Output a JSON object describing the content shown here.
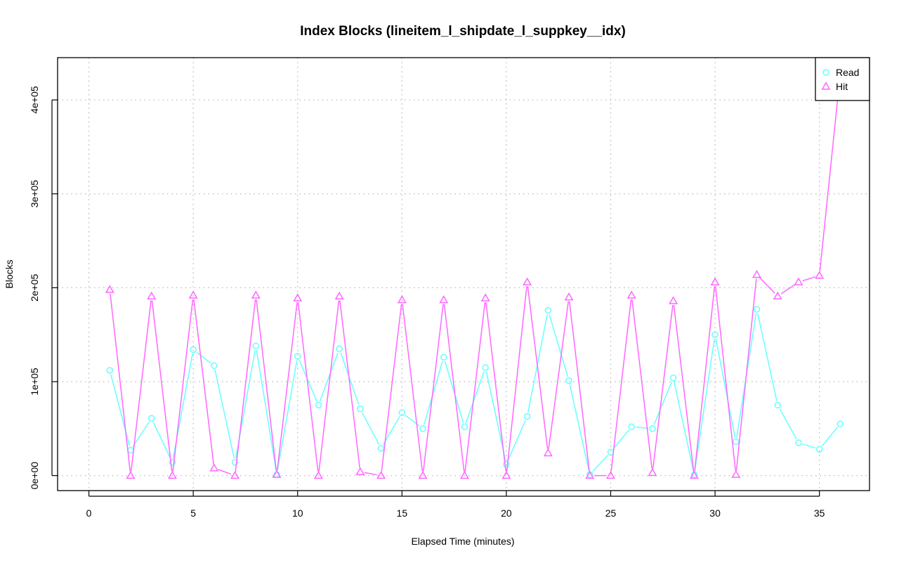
{
  "chart_data": {
    "type": "line",
    "title": "Index Blocks (lineitem_l_shipdate_l_suppkey__idx)",
    "xlabel": "Elapsed Time (minutes)",
    "ylabel": "Blocks",
    "xlim": [
      -1.5,
      37.4
    ],
    "ylim": [
      -16000,
      445000
    ],
    "x_ticks": [
      0,
      5,
      10,
      15,
      20,
      25,
      30,
      35
    ],
    "x_tick_labels": [
      "0",
      "5",
      "10",
      "15",
      "20",
      "25",
      "30",
      "35"
    ],
    "y_ticks": [
      0,
      100000,
      200000,
      300000,
      400000
    ],
    "y_tick_labels": [
      "0e+00",
      "1e+05",
      "2e+05",
      "3e+05",
      "4e+05"
    ],
    "grid": true,
    "legend_position": "top-right",
    "x": [
      1,
      2,
      3,
      4,
      5,
      6,
      7,
      8,
      9,
      10,
      11,
      12,
      13,
      14,
      15,
      16,
      17,
      18,
      19,
      20,
      21,
      22,
      23,
      24,
      25,
      26,
      27,
      28,
      29,
      30,
      31,
      32,
      33,
      34,
      35,
      36
    ],
    "series": [
      {
        "name": "Read",
        "color": "#66ffff",
        "marker": "circle",
        "values": [
          112000,
          27000,
          61000,
          14000,
          134000,
          117000,
          14000,
          138000,
          1000,
          127000,
          75000,
          135000,
          71000,
          29000,
          67000,
          50000,
          126000,
          52000,
          115000,
          12000,
          63000,
          176000,
          101000,
          1000,
          25000,
          52000,
          50000,
          104000,
          1000,
          150000,
          36000,
          177000,
          75000,
          35000,
          28000,
          55000
        ]
      },
      {
        "name": "Hit",
        "color": "#ff66ff",
        "marker": "triangle",
        "values": [
          198000,
          0,
          191000,
          0,
          192000,
          8000,
          0,
          192000,
          1000,
          189000,
          0,
          191000,
          4000,
          0,
          187000,
          0,
          187000,
          0,
          189000,
          0,
          206000,
          24000,
          190000,
          0,
          0,
          192000,
          3000,
          186000,
          0,
          206000,
          1000,
          214000,
          191000,
          206000,
          213000,
          428000
        ]
      }
    ]
  }
}
